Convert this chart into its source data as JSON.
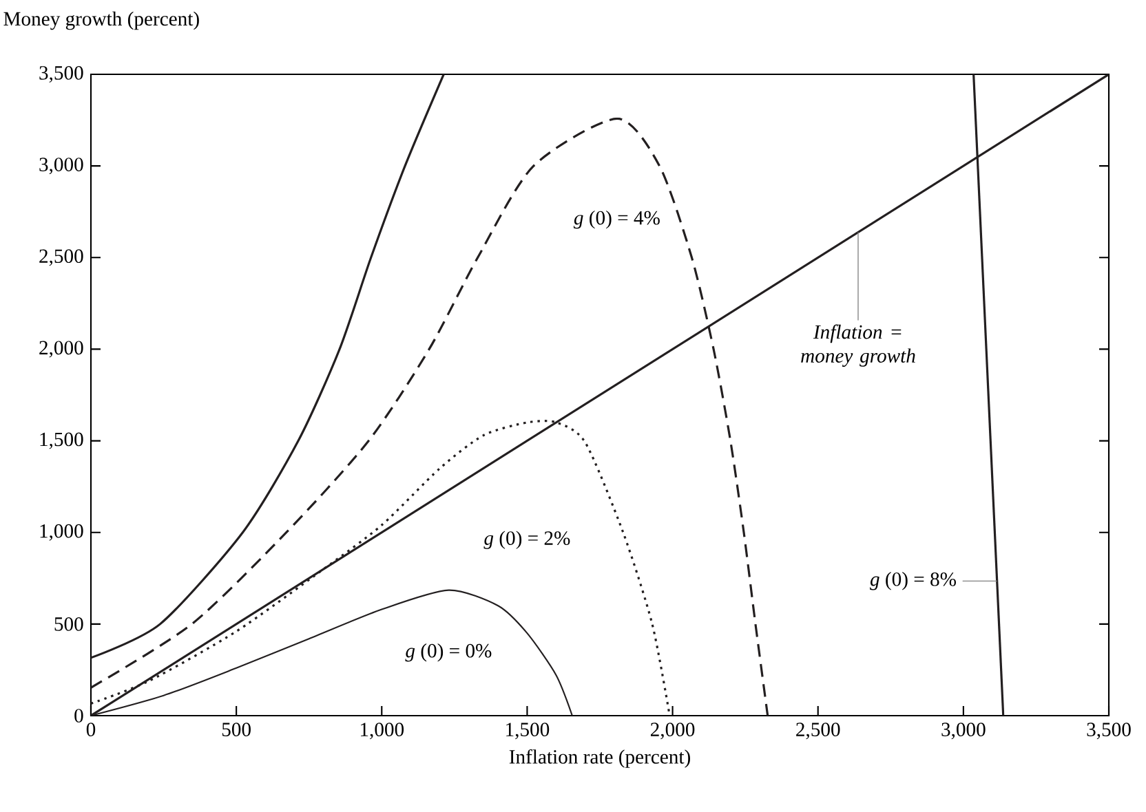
{
  "chart_data": {
    "type": "line",
    "xlabel": "Inflation rate (percent)",
    "ylabel": "Money growth (percent)",
    "xlim": [
      0,
      3500
    ],
    "ylim": [
      0,
      3500
    ],
    "xticks": [
      0,
      500,
      {
        "value": 1000,
        "label": "1,000"
      },
      {
        "value": 1500,
        "label": "1,500"
      },
      {
        "value": 2000,
        "label": "2,000"
      },
      {
        "value": 2500,
        "label": "2,500"
      },
      {
        "value": 3000,
        "label": "3,000"
      },
      {
        "value": 3500,
        "label": "3,500"
      }
    ],
    "yticks": [
      0,
      500,
      {
        "value": 1000,
        "label": "1,000"
      },
      {
        "value": 1500,
        "label": "1,500"
      },
      {
        "value": 2000,
        "label": "2,000"
      },
      {
        "value": 2500,
        "label": "2,500"
      },
      {
        "value": 3000,
        "label": "3,000"
      },
      {
        "value": 3500,
        "label": "3,500"
      }
    ],
    "grid": false,
    "legend": false,
    "marker": "none",
    "series": [
      {
        "color": "#231f20",
        "line_style": "solid",
        "x": [
          0,
          3500
        ],
        "values": [
          0,
          3500
        ]
      },
      {
        "name": "*g* (0) = 0%",
        "color": "#231f20",
        "line_style": "solid",
        "x": [
          0,
          250,
          500,
          750,
          1000,
          1230,
          1400,
          1500,
          1600,
          1655
        ],
        "values": [
          0,
          110,
          260,
          420,
          580,
          685,
          600,
          450,
          220,
          0
        ]
      },
      {
        "name": "*g* (0) = 2%",
        "color": "#231f20",
        "line_style": "dotted",
        "x": [
          0,
          200,
          500,
          800,
          1000,
          1200,
          1350,
          1500,
          1600,
          1700,
          1830,
          1930,
          1990
        ],
        "values": [
          66,
          190,
          460,
          800,
          1040,
          1350,
          1530,
          1600,
          1600,
          1490,
          1000,
          500,
          0
        ]
      },
      {
        "name": "*g* (0) = 4%",
        "color": "#231f20",
        "line_style": "dashed",
        "x": [
          0,
          347,
          672,
          955,
          1163,
          1330,
          1522,
          1809,
          1955,
          2066,
          2141,
          2199,
          2245,
          2285,
          2327
        ],
        "values": [
          153,
          500,
          1000,
          1500,
          2000,
          2500,
          3000,
          3258,
          3000,
          2500,
          2000,
          1500,
          1000,
          500,
          0
        ]
      },
      {
        "color": "#231f20",
        "line_style": "solid",
        "x": [
          0,
          238,
          522,
          713,
          855,
          963,
          1080,
          1213
        ],
        "values": [
          316,
          500,
          1000,
          1500,
          2000,
          2500,
          3000,
          3500
        ]
      },
      {
        "name": "*g* (0) = 8%",
        "color": "#231f20",
        "line_style": "solid",
        "x": [
          3035,
          3137
        ],
        "values": [
          3500,
          0
        ]
      }
    ],
    "annotations": [
      {
        "text": "Inflation = money growth",
        "x": 2638,
        "y": 2638
      }
    ]
  }
}
